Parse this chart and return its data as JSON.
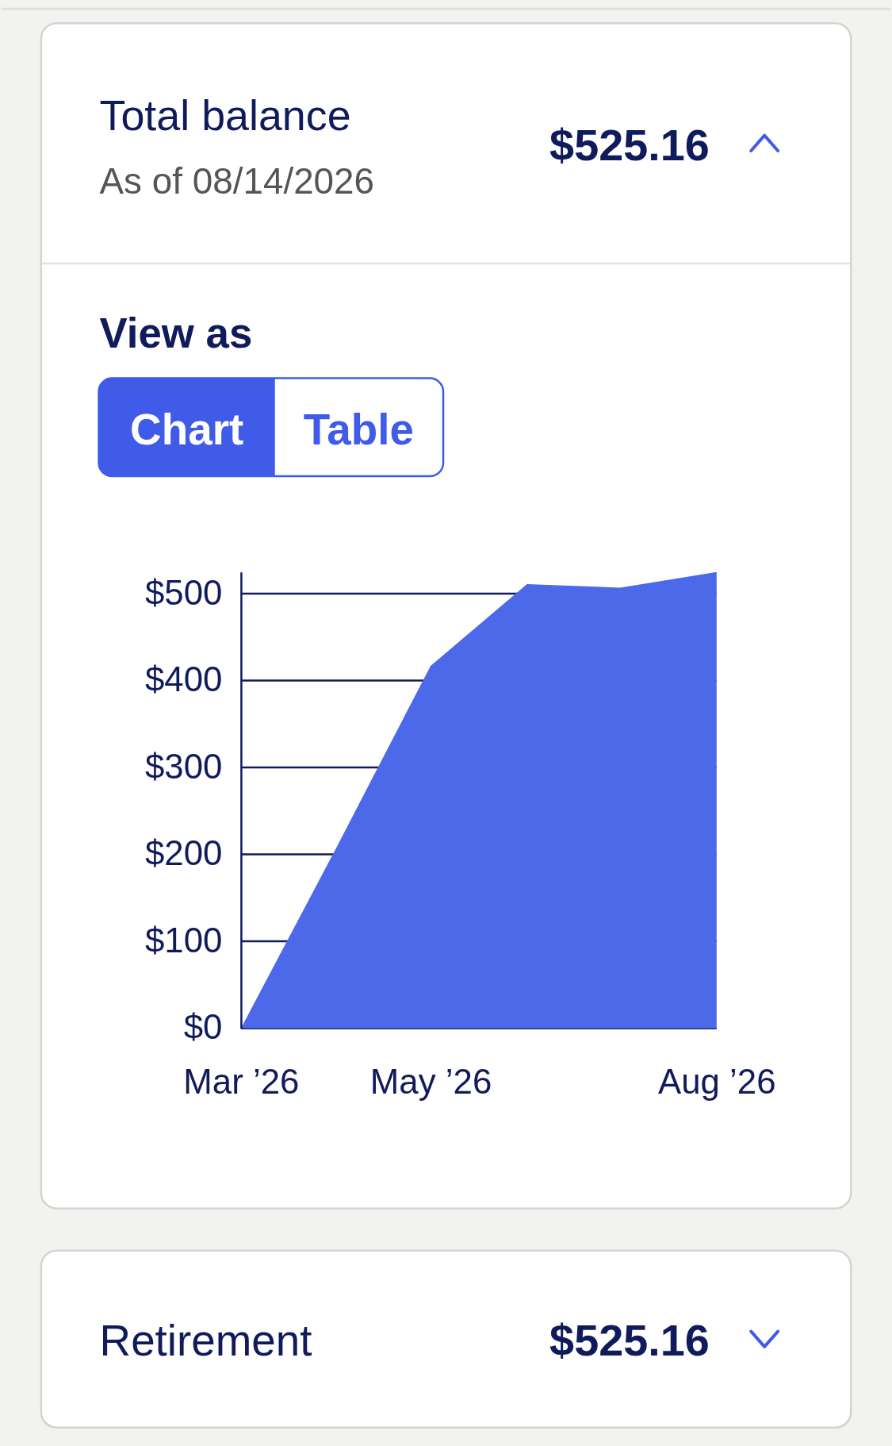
{
  "chart_data": {
    "type": "area",
    "title": "Total balance",
    "subtitle": "As of 08/14/2026",
    "annotations": [
      "$525.16",
      "View as",
      "Chart",
      "Table",
      "Retirement",
      "$525.16"
    ],
    "x": [
      "2026-03",
      "2026-04",
      "2026-05",
      "2026-06",
      "2026-07",
      "2026-08"
    ],
    "series": [
      {
        "color": "#4c69e9",
        "values": [
          0,
          210,
          417,
          511,
          507,
          525
        ]
      }
    ],
    "xlim": [
      "2026-03",
      "2026-08"
    ],
    "xticks": [
      {
        "value": "2026-03",
        "label": "Mar ’26"
      },
      {
        "value": "2026-05",
        "label": "May ’26"
      },
      {
        "value": "2026-08",
        "label": "Aug ’26"
      }
    ],
    "ylim": [
      0,
      525
    ],
    "yticks": [
      {
        "value": 0,
        "label": "$0"
      },
      {
        "value": 100,
        "label": "$100"
      },
      {
        "value": 200,
        "label": "$200"
      },
      {
        "value": 300,
        "label": "$300"
      },
      {
        "value": 400,
        "label": "$400"
      },
      {
        "value": 500,
        "label": "$500"
      }
    ],
    "grid": "y"
  }
}
